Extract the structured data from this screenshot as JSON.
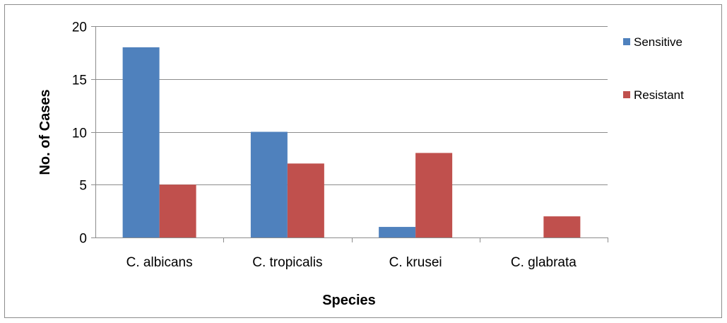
{
  "chart_data": {
    "type": "bar",
    "title": "",
    "xlabel": "Species",
    "ylabel": "No. of Cases",
    "categories": [
      "C. albicans",
      "C. tropicalis",
      "C. krusei",
      "C. glabrata"
    ],
    "series": [
      {
        "name": "Sensitive",
        "color": "#4f81bd",
        "values": [
          18,
          10,
          1,
          0
        ]
      },
      {
        "name": "Resistant",
        "color": "#c0504d",
        "values": [
          5,
          7,
          8,
          2
        ]
      }
    ],
    "ylim": [
      0,
      20
    ],
    "yticks": [
      "0",
      "5",
      "10",
      "15",
      "20"
    ],
    "grid": true,
    "legend_position": "right"
  }
}
